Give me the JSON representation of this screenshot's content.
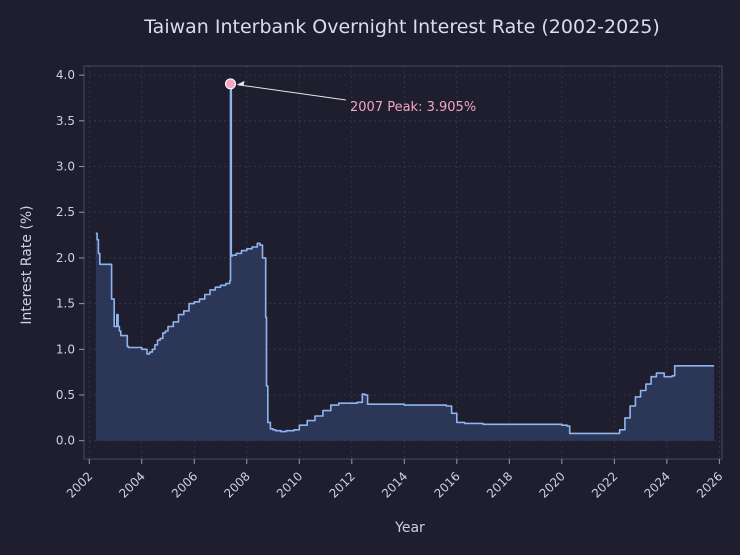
{
  "chart_data": {
    "type": "area",
    "title": "Taiwan Interbank Overnight Interest Rate (2002-2025)",
    "xlabel": "Year",
    "ylabel": "Interest Rate (%)",
    "xlim": [
      2001.8,
      2026.1
    ],
    "ylim": [
      -0.2,
      4.1
    ],
    "x_ticks": [
      2002,
      2004,
      2006,
      2008,
      2010,
      2012,
      2014,
      2016,
      2018,
      2020,
      2022,
      2024,
      2026
    ],
    "y_ticks": [
      0.0,
      0.5,
      1.0,
      1.5,
      2.0,
      2.5,
      3.0,
      3.5,
      4.0
    ],
    "grid": true,
    "colors": {
      "line": "#8fb4ef",
      "fill": "#2f3c5e",
      "peak": "#f4a6c4",
      "background": "#1e1e2e",
      "grid": "#3a3a50"
    },
    "series": [
      {
        "x": [
          2002.25,
          2002.3,
          2002.35,
          2002.4,
          2002.5,
          2002.6,
          2002.75,
          2002.85,
          2002.95,
          2003.05,
          2003.1,
          2003.15,
          2003.2,
          2003.3,
          2003.45,
          2003.5,
          2003.6,
          2003.8,
          2004.0,
          2004.2,
          2004.3,
          2004.4,
          2004.5,
          2004.6,
          2004.7,
          2004.8,
          2004.9,
          2005.0,
          2005.2,
          2005.4,
          2005.6,
          2005.8,
          2006.0,
          2006.2,
          2006.4,
          2006.6,
          2006.8,
          2007.0,
          2007.2,
          2007.35,
          2007.38,
          2007.41,
          2007.45,
          2007.6,
          2007.8,
          2008.0,
          2008.2,
          2008.4,
          2008.5,
          2008.6,
          2008.72,
          2008.75,
          2008.8,
          2008.9,
          2009.0,
          2009.1,
          2009.3,
          2009.5,
          2009.8,
          2010.0,
          2010.3,
          2010.6,
          2010.9,
          2011.2,
          2011.5,
          2011.8,
          2012.0,
          2012.2,
          2012.4,
          2012.5,
          2012.6,
          2012.8,
          2013.2,
          2014.0,
          2014.8,
          2015.6,
          2015.8,
          2016.0,
          2016.3,
          2017.0,
          2018.0,
          2019.0,
          2019.8,
          2020.0,
          2020.2,
          2020.3,
          2020.6,
          2021.0,
          2021.5,
          2022.0,
          2022.2,
          2022.4,
          2022.6,
          2022.8,
          2023.0,
          2023.2,
          2023.4,
          2023.6,
          2023.9,
          2024.2,
          2024.3,
          2024.6,
          2025.0,
          2025.4,
          2025.8
        ],
        "y": [
          2.27,
          2.2,
          2.05,
          1.93,
          1.93,
          1.93,
          1.93,
          1.55,
          1.25,
          1.38,
          1.25,
          1.2,
          1.15,
          1.15,
          1.03,
          1.02,
          1.02,
          1.02,
          1.0,
          0.95,
          0.97,
          1.0,
          1.05,
          1.1,
          1.12,
          1.18,
          1.2,
          1.25,
          1.3,
          1.38,
          1.42,
          1.5,
          1.52,
          1.55,
          1.6,
          1.65,
          1.68,
          1.7,
          1.72,
          1.75,
          3.905,
          2.02,
          2.03,
          2.05,
          2.08,
          2.1,
          2.12,
          2.16,
          2.14,
          2.0,
          1.35,
          0.6,
          0.2,
          0.13,
          0.12,
          0.11,
          0.1,
          0.11,
          0.12,
          0.17,
          0.22,
          0.27,
          0.33,
          0.39,
          0.41,
          0.41,
          0.41,
          0.42,
          0.51,
          0.5,
          0.4,
          0.4,
          0.4,
          0.39,
          0.39,
          0.38,
          0.3,
          0.2,
          0.19,
          0.18,
          0.18,
          0.18,
          0.18,
          0.17,
          0.16,
          0.08,
          0.08,
          0.08,
          0.08,
          0.08,
          0.12,
          0.25,
          0.38,
          0.48,
          0.55,
          0.62,
          0.7,
          0.74,
          0.7,
          0.71,
          0.82,
          0.82,
          0.82,
          0.82,
          0.82
        ]
      }
    ],
    "annotations": [
      {
        "text": "2007 Peak: 3.905%",
        "x": 2007.38,
        "y": 3.905
      }
    ]
  }
}
